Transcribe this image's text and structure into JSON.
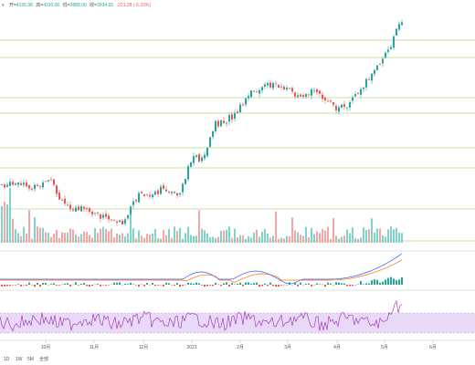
{
  "header": {
    "ohlc": {
      "open_label": "开=",
      "open": "4155.98",
      "high_label": "高=",
      "high": "4310.00",
      "low_label": "低=",
      "low": "3888.00",
      "close_label": "收=",
      "close": "3934.65",
      "change": "-221.28 (-5.33%)"
    }
  },
  "colors": {
    "up": "#26a69a",
    "down": "#ef5350",
    "fib_line": "#8bc34a",
    "macd_line": "#2962ff",
    "signal_line": "#ff6d00",
    "rsi_line": "#9c27b0",
    "rsi_band": "#e8d9f7"
  },
  "time_axis": {
    "labels": [
      "10月",
      "11月",
      "12月",
      "2021",
      "2月",
      "3月",
      "4月",
      "5月",
      "6月"
    ]
  },
  "bottom_bar": {
    "items": [
      "1D",
      "1W",
      "5M",
      "全部"
    ]
  },
  "chart_data": [
    {
      "type": "candlestick",
      "name": "price",
      "trend_x": [
        0,
        40,
        55,
        65,
        85,
        100,
        115,
        135,
        150,
        165,
        180,
        195,
        210,
        220,
        235,
        255,
        275,
        300,
        310,
        325,
        340,
        355,
        365,
        380,
        395,
        405,
        420,
        440
      ],
      "trend_y": [
        202,
        205,
        199,
        222,
        229,
        233,
        239,
        244,
        213,
        216,
        205,
        218,
        170,
        175,
        136,
        128,
        101,
        91,
        97,
        103,
        101,
        106,
        120,
        114,
        94,
        83,
        63,
        20
      ],
      "fib_levels_y": [
        44,
        63,
        107,
        124,
        162,
        184,
        229,
        264
      ]
    },
    {
      "type": "bar",
      "name": "volume",
      "bar_count": 150
    },
    {
      "type": "line",
      "name": "macd",
      "series": [
        "macd",
        "signal",
        "histogram"
      ]
    },
    {
      "type": "line",
      "name": "rsi",
      "band": [
        30,
        70
      ]
    }
  ]
}
